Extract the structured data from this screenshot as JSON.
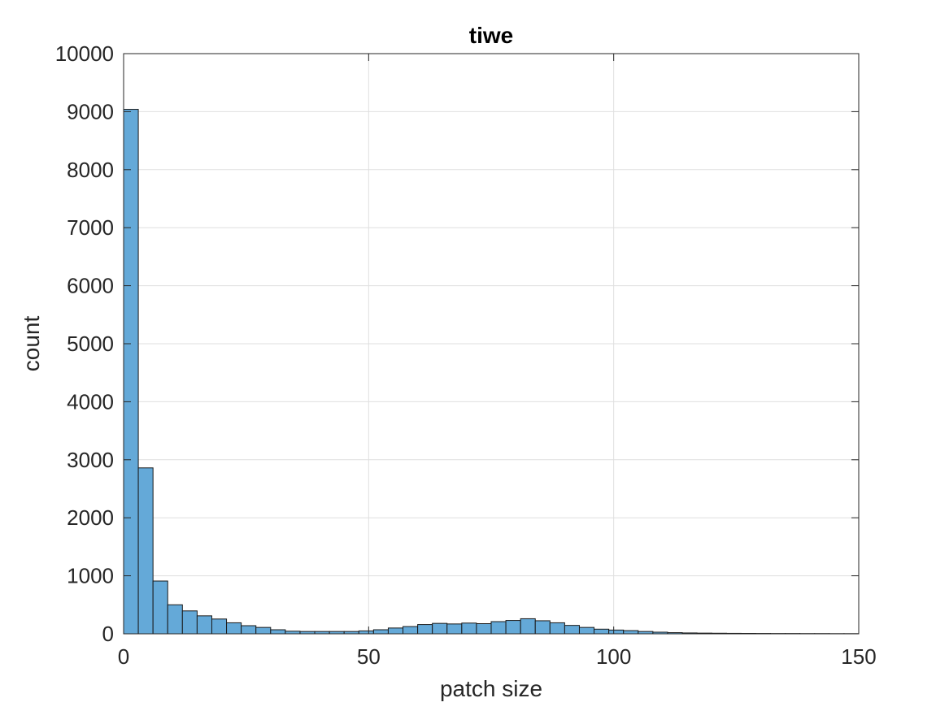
{
  "chart_data": {
    "type": "bar",
    "title": "tiwe",
    "xlabel": "patch size",
    "ylabel": "count",
    "xlim": [
      0,
      150
    ],
    "ylim": [
      0,
      10000
    ],
    "xticks": [
      0,
      50,
      100,
      150
    ],
    "yticks": [
      0,
      1000,
      2000,
      3000,
      4000,
      5000,
      6000,
      7000,
      8000,
      9000,
      10000
    ],
    "xtick_labels": [
      "0",
      "50",
      "100",
      "150"
    ],
    "ytick_labels": [
      "0",
      "1000",
      "2000",
      "3000",
      "4000",
      "5000",
      "6000",
      "7000",
      "8000",
      "9000",
      "10000"
    ],
    "grid": true,
    "bin_width": 3,
    "bin_start": 0,
    "values": [
      9040,
      2860,
      910,
      500,
      395,
      310,
      255,
      190,
      140,
      110,
      70,
      45,
      40,
      40,
      40,
      40,
      50,
      70,
      100,
      125,
      160,
      180,
      170,
      185,
      175,
      210,
      230,
      260,
      225,
      190,
      145,
      110,
      80,
      65,
      55,
      40,
      28,
      20,
      15,
      12,
      10,
      8,
      7,
      6,
      5,
      5,
      4,
      4,
      3,
      3
    ],
    "bar_color": "#64a9d8",
    "edge_color": "#1a1a1a"
  },
  "colors": {
    "axis": "#262626",
    "grid": "#dfdfdf",
    "background": "#ffffff"
  }
}
